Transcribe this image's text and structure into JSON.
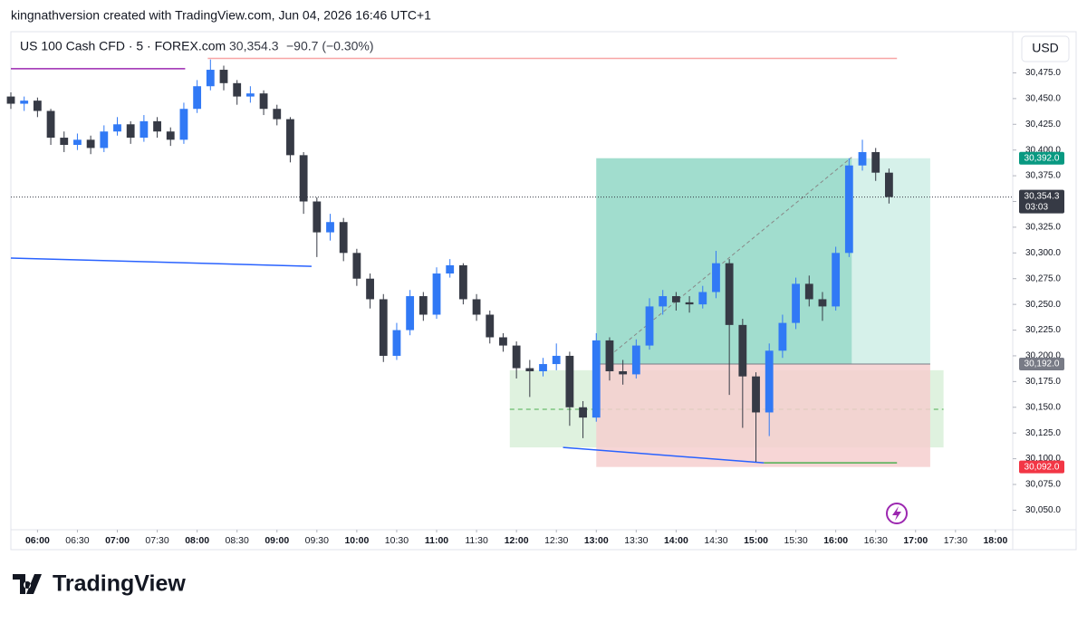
{
  "header": {
    "attribution": "kingnathversion created with TradingView.com, Jun 04, 2026 16:46 UTC+1",
    "symbol": "US 100 Cash CFD · 5 · FOREX.com",
    "last": "30,354.3",
    "change": "−90.7 (−0.30%)",
    "currency": "USD"
  },
  "logo": "TradingView",
  "chart_data": {
    "type": "candlestick",
    "x": [
      340,
      350,
      360,
      370,
      380,
      390,
      400,
      410,
      420,
      430,
      440,
      450,
      460,
      470,
      480,
      490,
      500,
      510,
      520,
      530,
      540,
      550,
      560,
      570,
      580,
      590,
      600,
      610,
      620,
      630,
      640,
      650,
      660,
      670,
      680,
      690,
      700,
      710,
      720,
      730,
      740,
      750,
      760,
      770,
      780,
      790,
      800,
      810,
      820,
      830,
      840,
      850,
      860,
      870,
      880,
      890,
      900,
      910,
      920,
      930,
      940,
      950,
      960,
      970,
      980,
      990,
      1000
    ],
    "open": [
      30452,
      30445,
      30448,
      30438,
      30412,
      30405,
      30410,
      30402,
      30418,
      30425,
      30412,
      30428,
      30418,
      30410,
      30440,
      30462,
      30478,
      30465,
      30452,
      30455,
      30440,
      30430,
      30395,
      30350,
      30320,
      30330,
      30300,
      30275,
      30255,
      30200,
      30225,
      30258,
      30240,
      30280,
      30288,
      30255,
      30240,
      30218,
      30210,
      30188,
      30185,
      30192,
      30200,
      30150,
      30140,
      30215,
      30185,
      30182,
      30210,
      30248,
      30258,
      30252,
      30250,
      30262,
      30290,
      30230,
      30180,
      30145,
      30205,
      30232,
      30270,
      30255,
      30248,
      30300,
      30385,
      30398,
      30378
    ],
    "high": [
      30456,
      30452,
      30451,
      30440,
      30418,
      30416,
      30414,
      30424,
      30432,
      30428,
      30434,
      30432,
      30422,
      30446,
      30468,
      30488,
      30482,
      30468,
      30462,
      30458,
      30444,
      30432,
      30398,
      30354,
      30338,
      30334,
      30304,
      30280,
      30260,
      30232,
      30264,
      30262,
      30286,
      30294,
      30290,
      30260,
      30244,
      30222,
      30214,
      30196,
      30198,
      30212,
      30204,
      30156,
      30222,
      30218,
      30196,
      30216,
      30256,
      30264,
      30262,
      30258,
      30268,
      30302,
      30294,
      30236,
      30184,
      30212,
      30240,
      30276,
      30278,
      30262,
      30306,
      30392,
      30410,
      30402,
      30382
    ],
    "low": [
      30440,
      30438,
      30432,
      30405,
      30398,
      30400,
      30396,
      30398,
      30414,
      30406,
      30408,
      30412,
      30404,
      30406,
      30436,
      30458,
      30458,
      30444,
      30446,
      30434,
      30424,
      30388,
      30338,
      30296,
      30312,
      30292,
      30268,
      30246,
      30194,
      30196,
      30220,
      30234,
      30236,
      30276,
      30250,
      30234,
      30212,
      30204,
      30178,
      30160,
      30180,
      30186,
      30132,
      30120,
      30136,
      30176,
      30172,
      30178,
      30206,
      30240,
      30244,
      30242,
      30246,
      30256,
      30162,
      30130,
      30097,
      30122,
      30198,
      30226,
      30248,
      30234,
      30244,
      30296,
      30380,
      30370,
      30348
    ],
    "close": [
      30445,
      30448,
      30438,
      30412,
      30405,
      30410,
      30402,
      30418,
      30425,
      30412,
      30428,
      30418,
      30410,
      30440,
      30462,
      30478,
      30465,
      30452,
      30455,
      30440,
      30430,
      30395,
      30350,
      30320,
      30330,
      30300,
      30275,
      30255,
      30200,
      30225,
      30258,
      30240,
      30280,
      30288,
      30255,
      30240,
      30218,
      30210,
      30188,
      30185,
      30192,
      30200,
      30150,
      30140,
      30215,
      30185,
      30182,
      30210,
      30248,
      30258,
      30252,
      30250,
      30262,
      30290,
      30230,
      30180,
      30145,
      30205,
      30232,
      30270,
      30255,
      30248,
      30300,
      30385,
      30398,
      30378,
      30354.3
    ],
    "up_color": "#3179f5",
    "down_color": "#363a45",
    "xlim": [
      340,
      1093
    ],
    "ylim": [
      30031,
      30515
    ],
    "yticks": [
      {
        "value": 30050,
        "label": "30,050.0"
      },
      {
        "value": 30075,
        "label": "30,075.0"
      },
      {
        "value": 30100,
        "label": "30,100.0"
      },
      {
        "value": 30125,
        "label": "30,125.0"
      },
      {
        "value": 30150,
        "label": "30,150.0"
      },
      {
        "value": 30175,
        "label": "30,175.0"
      },
      {
        "value": 30200,
        "label": "30,200.0"
      },
      {
        "value": 30225,
        "label": "30,225.0"
      },
      {
        "value": 30250,
        "label": "30,250.0"
      },
      {
        "value": 30275,
        "label": "30,275.0"
      },
      {
        "value": 30300,
        "label": "30,300.0"
      },
      {
        "value": 30325,
        "label": "30,325.0"
      },
      {
        "value": 30350,
        "label": "30,350.0"
      },
      {
        "value": 30375,
        "label": "30,375.0"
      },
      {
        "value": 30400,
        "label": "30,400.0"
      },
      {
        "value": 30425,
        "label": "30,425.0"
      },
      {
        "value": 30450,
        "label": "30,450.0"
      },
      {
        "value": 30475,
        "label": "30,475.0"
      }
    ],
    "xticks": [
      {
        "value": 360,
        "label": "06:00"
      },
      {
        "value": 390,
        "label": "06:30"
      },
      {
        "value": 420,
        "label": "07:00"
      },
      {
        "value": 450,
        "label": "07:30"
      },
      {
        "value": 480,
        "label": "08:00"
      },
      {
        "value": 510,
        "label": "08:30"
      },
      {
        "value": 540,
        "label": "09:00"
      },
      {
        "value": 570,
        "label": "09:30"
      },
      {
        "value": 600,
        "label": "10:00"
      },
      {
        "value": 630,
        "label": "10:30"
      },
      {
        "value": 660,
        "label": "11:00"
      },
      {
        "value": 690,
        "label": "11:30"
      },
      {
        "value": 720,
        "label": "12:00"
      },
      {
        "value": 750,
        "label": "12:30"
      },
      {
        "value": 780,
        "label": "13:00"
      },
      {
        "value": 810,
        "label": "13:30"
      },
      {
        "value": 840,
        "label": "14:00"
      },
      {
        "value": 870,
        "label": "14:30"
      },
      {
        "value": 900,
        "label": "15:00"
      },
      {
        "value": 930,
        "label": "15:30"
      },
      {
        "value": 960,
        "label": "16:00"
      },
      {
        "value": 990,
        "label": "16:30"
      },
      {
        "value": 1020,
        "label": "17:00"
      },
      {
        "value": 1050,
        "label": "17:30"
      },
      {
        "value": 1080,
        "label": "18:00"
      }
    ],
    "price_labels": [
      {
        "value": 30392,
        "label": "30,392.0",
        "color": "#089981"
      },
      {
        "value": 30192,
        "label": "30,192.0",
        "color": "#787b86"
      },
      {
        "value": 30092,
        "label": "30,092.0",
        "color": "#f23645"
      }
    ],
    "last_price": {
      "value": 30354.3,
      "label": "30,354.3",
      "countdown": "03:03",
      "color": "#363a45"
    },
    "lines": [
      {
        "x": [
          340,
          471
        ],
        "y": [
          30479,
          30479
        ],
        "color": "#9c27b0"
      },
      {
        "x": [
          488,
          1006
        ],
        "y": [
          30489,
          30489
        ],
        "color": "#f7a5a5"
      },
      {
        "x": [
          340,
          566
        ],
        "y": [
          30295,
          30287
        ],
        "color": "#2962ff"
      },
      {
        "x": [
          755,
          906
        ],
        "y": [
          30111,
          30096
        ],
        "color": "#2962ff"
      },
      {
        "x": [
          906,
          1006
        ],
        "y": [
          30096,
          30096
        ],
        "color": "#4caf50"
      },
      {
        "x": [
          790,
          972
        ],
        "y": [
          30200,
          30393
        ],
        "color": "#888888",
        "dashed": true
      }
    ],
    "positions": [
      {
        "x": [
          715,
          1041
        ],
        "entry": 30148,
        "target": 30186,
        "stop": 30111,
        "target_color": "#d9f0d9",
        "stop_color": "#d9f0d9",
        "dashed_entry": true
      },
      {
        "x": [
          780,
          1031
        ],
        "entry": 30192,
        "target": 30392,
        "stop": 30092,
        "filled_until": 972,
        "target_color": "#cfeee6",
        "filled_color": "#93d8c7",
        "stop_color": "#f6cfcf"
      }
    ]
  }
}
